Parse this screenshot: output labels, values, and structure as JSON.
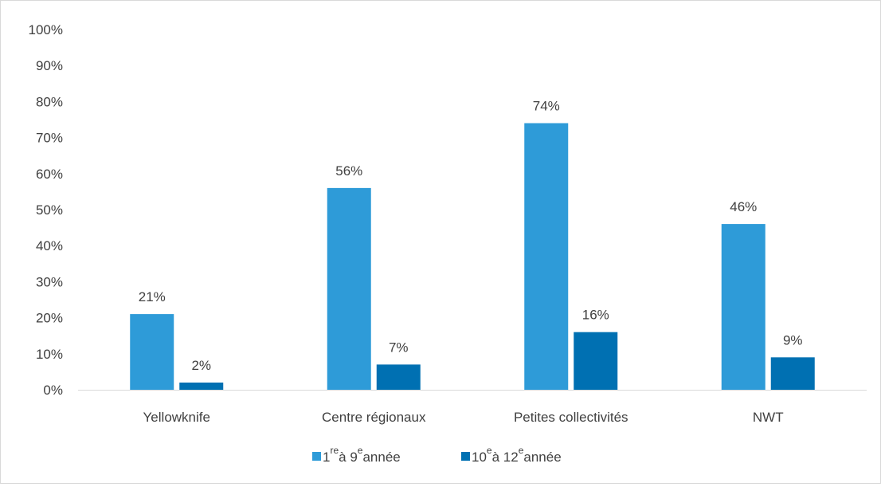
{
  "chart_data": {
    "type": "bar",
    "categories": [
      "Yellowknife",
      "Centre régionaux",
      "Petites collectivités",
      "NWT"
    ],
    "series": [
      {
        "name": "1re à 9e année",
        "values": [
          21,
          56,
          74,
          46
        ],
        "labels": [
          "21%",
          "56%",
          "74%",
          "46%"
        ],
        "color": "#2e9bd8"
      },
      {
        "name": "10e à 12e année",
        "values": [
          2,
          7,
          16,
          9
        ],
        "labels": [
          "2%",
          "7%",
          "16%",
          "9%"
        ],
        "color": "#0070b2"
      }
    ],
    "ylim": [
      0,
      100
    ],
    "yticks": [
      "0%",
      "10%",
      "20%",
      "30%",
      "40%",
      "50%",
      "60%",
      "70%",
      "80%",
      "90%",
      "100%"
    ],
    "grid": false,
    "legend_position": "bottom",
    "legend": [
      {
        "parts": [
          {
            "text": "1",
            "sup": false
          },
          {
            "text": "re",
            "sup": true
          },
          {
            "text": "à 9",
            "sup": false
          },
          {
            "text": "e",
            "sup": true
          },
          {
            "text": "année",
            "sup": false
          }
        ],
        "color": "#2e9bd8"
      },
      {
        "parts": [
          {
            "text": "10",
            "sup": false
          },
          {
            "text": "e",
            "sup": true
          },
          {
            "text": "à 12",
            "sup": false
          },
          {
            "text": "e",
            "sup": true
          },
          {
            "text": "année",
            "sup": false
          }
        ],
        "color": "#0070b2"
      }
    ],
    "title": "",
    "xlabel": "",
    "ylabel": ""
  }
}
